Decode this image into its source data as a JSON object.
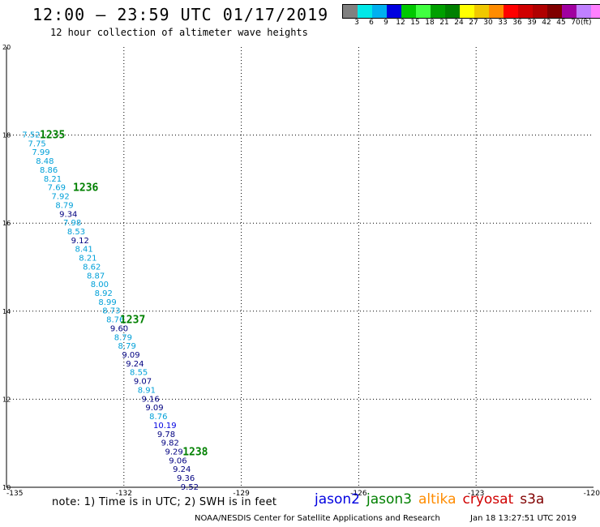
{
  "header": {
    "title": "12:00 – 23:59 UTC 01/17/2019",
    "subtitle": "12 hour collection of altimeter wave heights"
  },
  "legend": {
    "colors": [
      "#808080",
      "#00e8e8",
      "#00b0f0",
      "#0000e0",
      "#00c800",
      "#40ff40",
      "#00a000",
      "#008000",
      "#ffff00",
      "#f0c800",
      "#ff8c00",
      "#ff0000",
      "#d00000",
      "#b00000",
      "#800000",
      "#a000a0",
      "#c080ff",
      "#ff80ff",
      "#000000"
    ],
    "labels": [
      "3",
      "6",
      "9",
      "12",
      "15",
      "18",
      "21",
      "24",
      "27",
      "30",
      "33",
      "36",
      "39",
      "42",
      "45",
      "70"
    ],
    "unit": "(ft)"
  },
  "chart_data": {
    "type": "scatter",
    "x_ticks": [
      "-135",
      "-132",
      "-129",
      "-126",
      "-123",
      "-120"
    ],
    "y_ticks": [
      "20",
      "18",
      "16",
      "14",
      "12",
      "10"
    ],
    "xlim": [
      -135,
      -120
    ],
    "ylim": [
      10,
      20
    ],
    "grid": true,
    "points": [
      {
        "lon": -134.6,
        "lat": 18.02,
        "value": "7.52",
        "color": "#00a0d8"
      },
      {
        "lon": -134.45,
        "lat": 17.82,
        "value": "7.75",
        "color": "#00a0d8"
      },
      {
        "lon": -134.35,
        "lat": 17.62,
        "value": "7.99",
        "color": "#00a0d8"
      },
      {
        "lon": -134.25,
        "lat": 17.42,
        "value": "8.48",
        "color": "#00a0d8"
      },
      {
        "lon": -134.15,
        "lat": 17.22,
        "value": "8.86",
        "color": "#00a0d8"
      },
      {
        "lon": -134.05,
        "lat": 17.02,
        "value": "8.21",
        "color": "#00a0d8"
      },
      {
        "lon": -133.95,
        "lat": 16.82,
        "value": "7.69",
        "color": "#00a0d8"
      },
      {
        "lon": -133.85,
        "lat": 16.62,
        "value": "7.92",
        "color": "#00a0d8"
      },
      {
        "lon": -133.75,
        "lat": 16.42,
        "value": "8.79",
        "color": "#00a0d8"
      },
      {
        "lon": -133.65,
        "lat": 16.22,
        "value": "9.34",
        "color": "#000080"
      },
      {
        "lon": -133.55,
        "lat": 16.02,
        "value": "7.98",
        "color": "#00a0d8"
      },
      {
        "lon": -133.45,
        "lat": 15.82,
        "value": "8.53",
        "color": "#00a0d8"
      },
      {
        "lon": -133.35,
        "lat": 15.62,
        "value": "9.12",
        "color": "#000080"
      },
      {
        "lon": -133.25,
        "lat": 15.42,
        "value": "8.41",
        "color": "#00a0d8"
      },
      {
        "lon": -133.15,
        "lat": 15.22,
        "value": "8.21",
        "color": "#00a0d8"
      },
      {
        "lon": -133.05,
        "lat": 15.02,
        "value": "8.62",
        "color": "#00a0d8"
      },
      {
        "lon": -132.95,
        "lat": 14.82,
        "value": "8.87",
        "color": "#00a0d8"
      },
      {
        "lon": -132.85,
        "lat": 14.62,
        "value": "8.00",
        "color": "#00a0d8"
      },
      {
        "lon": -132.75,
        "lat": 14.42,
        "value": "8.92",
        "color": "#00a0d8"
      },
      {
        "lon": -132.65,
        "lat": 14.22,
        "value": "8.99",
        "color": "#00a0d8"
      },
      {
        "lon": -132.55,
        "lat": 14.02,
        "value": "8.73",
        "color": "#00a0d8"
      },
      {
        "lon": -132.45,
        "lat": 13.82,
        "value": "8.76",
        "color": "#00a0d8"
      },
      {
        "lon": -132.35,
        "lat": 13.62,
        "value": "9.60",
        "color": "#000080"
      },
      {
        "lon": -132.25,
        "lat": 13.42,
        "value": "8.79",
        "color": "#00a0d8"
      },
      {
        "lon": -132.15,
        "lat": 13.22,
        "value": "8.79",
        "color": "#00a0d8"
      },
      {
        "lon": -132.05,
        "lat": 13.02,
        "value": "9.09",
        "color": "#000080"
      },
      {
        "lon": -131.95,
        "lat": 12.82,
        "value": "9.24",
        "color": "#000080"
      },
      {
        "lon": -131.85,
        "lat": 12.62,
        "value": "8.55",
        "color": "#00a0d8"
      },
      {
        "lon": -131.75,
        "lat": 12.42,
        "value": "9.07",
        "color": "#000080"
      },
      {
        "lon": -131.65,
        "lat": 12.22,
        "value": "8.91",
        "color": "#00a0d8"
      },
      {
        "lon": -131.55,
        "lat": 12.02,
        "value": "9.16",
        "color": "#000080"
      },
      {
        "lon": -131.45,
        "lat": 11.82,
        "value": "9.09",
        "color": "#000080"
      },
      {
        "lon": -131.35,
        "lat": 11.62,
        "value": "8.76",
        "color": "#00a0d8"
      },
      {
        "lon": -131.25,
        "lat": 11.42,
        "value": "10.19",
        "color": "#0000e0"
      },
      {
        "lon": -131.15,
        "lat": 11.22,
        "value": "9.78",
        "color": "#000080"
      },
      {
        "lon": -131.05,
        "lat": 11.02,
        "value": "9.82",
        "color": "#000080"
      },
      {
        "lon": -130.95,
        "lat": 10.82,
        "value": "9.29",
        "color": "#000080"
      },
      {
        "lon": -130.85,
        "lat": 10.62,
        "value": "9.06",
        "color": "#000080"
      },
      {
        "lon": -130.75,
        "lat": 10.42,
        "value": "9.24",
        "color": "#000080"
      },
      {
        "lon": -130.65,
        "lat": 10.22,
        "value": "9.36",
        "color": "#000080"
      },
      {
        "lon": -130.55,
        "lat": 10.02,
        "value": "9.52",
        "color": "#000080"
      }
    ],
    "time_labels": [
      {
        "lon": -134.15,
        "lat": 18.02,
        "text": "1235",
        "color": "#008000"
      },
      {
        "lon": -133.3,
        "lat": 16.82,
        "text": "1236",
        "color": "#008000"
      },
      {
        "lon": -132.1,
        "lat": 13.82,
        "text": "1237",
        "color": "#008000"
      },
      {
        "lon": -130.5,
        "lat": 10.82,
        "text": "1238",
        "color": "#008000"
      }
    ]
  },
  "footer": {
    "note": "note: 1) Time is in UTC; 2) SWH is in feet",
    "satellites": [
      {
        "name": "jason2",
        "color": "#0000e0"
      },
      {
        "name": "jason3",
        "color": "#008000"
      },
      {
        "name": "altika",
        "color": "#ff8c00"
      },
      {
        "name": "cryosat",
        "color": "#d00000"
      },
      {
        "name": "s3a",
        "color": "#800000"
      }
    ],
    "credit": "NOAA/NESDIS Center for Satellite Applications and Research",
    "timestamp": "Jan 18 13:27:51 UTC 2019"
  }
}
